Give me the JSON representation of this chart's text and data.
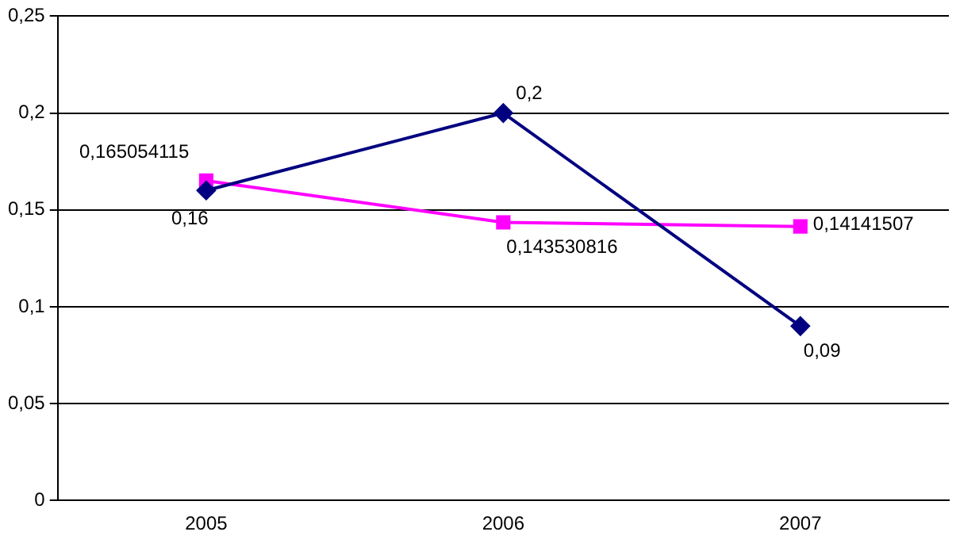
{
  "chart_data": {
    "type": "line",
    "categories": [
      "2005",
      "2006",
      "2007"
    ],
    "series": [
      {
        "color": "#000080",
        "marker": "diamond",
        "values": [
          0.16,
          0.2,
          0.09
        ],
        "value_labels": [
          "0,16",
          "0,2",
          "0,09"
        ]
      },
      {
        "color": "#ff00ff",
        "marker": "square",
        "values": [
          0.165054115,
          0.143530816,
          0.14141507
        ],
        "value_labels": [
          "0,165054115",
          "0,143530816",
          "0,14141507"
        ]
      }
    ],
    "ylim": [
      0,
      0.25
    ],
    "yticks": [
      {
        "value": 0,
        "label": "0"
      },
      {
        "value": 0.05,
        "label": "0,05"
      },
      {
        "value": 0.1,
        "label": "0,1"
      },
      {
        "value": 0.15,
        "label": "0,15"
      },
      {
        "value": 0.2,
        "label": "0,2"
      },
      {
        "value": 0.25,
        "label": "0,25"
      }
    ],
    "grid": "y",
    "legend": false,
    "line_style": "solid"
  }
}
